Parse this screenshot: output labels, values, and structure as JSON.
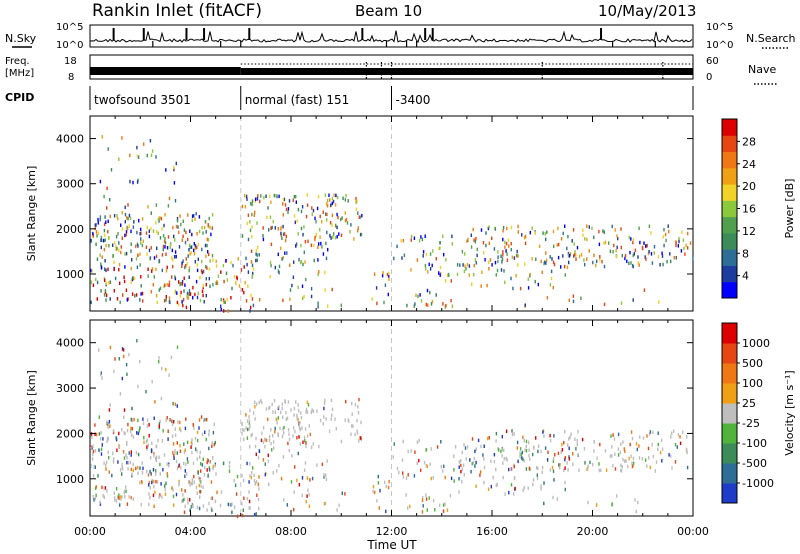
{
  "header": {
    "title": "Rankin Inlet (fitACF)",
    "beam": "Beam 10",
    "date": "10/May/2013"
  },
  "nsky_panel": {
    "left_label": "N.Sky",
    "right_label": "N.Search",
    "ticks_left": [
      "10^5",
      "10^0"
    ],
    "ticks_right": [
      "10^5",
      "10^0"
    ]
  },
  "freq_panel": {
    "left_label_1": "Freq.",
    "left_label_2": "[MHz]",
    "right_label": "Nave",
    "ticks_left": [
      "18",
      "8"
    ],
    "ticks_right": [
      "60",
      "0"
    ]
  },
  "cpid": {
    "label": "CPID",
    "segments": [
      {
        "name": "twofsound 3501",
        "start_hour": 0,
        "end_hour": 6
      },
      {
        "name": "normal (fast) 151",
        "start_hour": 6,
        "end_hour": 12
      },
      {
        "name": "-3400",
        "start_hour": 12,
        "end_hour": 24
      }
    ]
  },
  "chart_data": [
    {
      "type": "heatmap",
      "ylabel": "Slant Range [km]",
      "xlabel": "",
      "x_ticks": [
        "00:00",
        "04:00",
        "08:00",
        "12:00",
        "16:00",
        "20:00",
        "00:00"
      ],
      "xlim_hours": [
        0,
        24
      ],
      "ylim": [
        180,
        4500
      ],
      "y_ticks": [
        1000,
        2000,
        3000,
        4000
      ],
      "colorbar": {
        "label": "Power [dB]",
        "ticks": [
          "28",
          "24",
          "20",
          "16",
          "12",
          "8",
          "4"
        ],
        "colors": [
          "#0000ff",
          "#1e3ca0",
          "#2e6e96",
          "#3c8c5a",
          "#50a050",
          "#8cc83c",
          "#f0d228",
          "#f0a014",
          "#f07814",
          "#e64614",
          "#dc0000"
        ]
      },
      "regions": [
        {
          "t0": 0.0,
          "t1": 5.0,
          "r0": 300,
          "r1": 2600,
          "level": "mixed-high"
        },
        {
          "t0": 6.0,
          "t1": 11.5,
          "r0": 1800,
          "r1": 2800,
          "level": "mixed"
        },
        {
          "t0": 12.5,
          "t1": 24.0,
          "r0": 500,
          "r1": 2100,
          "level": "mixed"
        }
      ]
    },
    {
      "type": "heatmap",
      "ylabel": "Slant Range [km]",
      "xlabel": "Time UT",
      "x_ticks": [
        "00:00",
        "04:00",
        "08:00",
        "12:00",
        "16:00",
        "20:00",
        "00:00"
      ],
      "xlim_hours": [
        0,
        24
      ],
      "ylim": [
        180,
        4500
      ],
      "y_ticks": [
        1000,
        2000,
        3000,
        4000
      ],
      "colorbar": {
        "label": "Velocity [m s⁻¹]",
        "ticks": [
          "1000",
          "500",
          "100",
          "25",
          "-25",
          "-100",
          "-500",
          "-1000"
        ],
        "colors": [
          "#1e3cc8",
          "#2e6e96",
          "#3c8c5a",
          "#50b43c",
          "#bebebe",
          "#f0a014",
          "#f07814",
          "#e64614",
          "#dc0000"
        ]
      }
    }
  ]
}
